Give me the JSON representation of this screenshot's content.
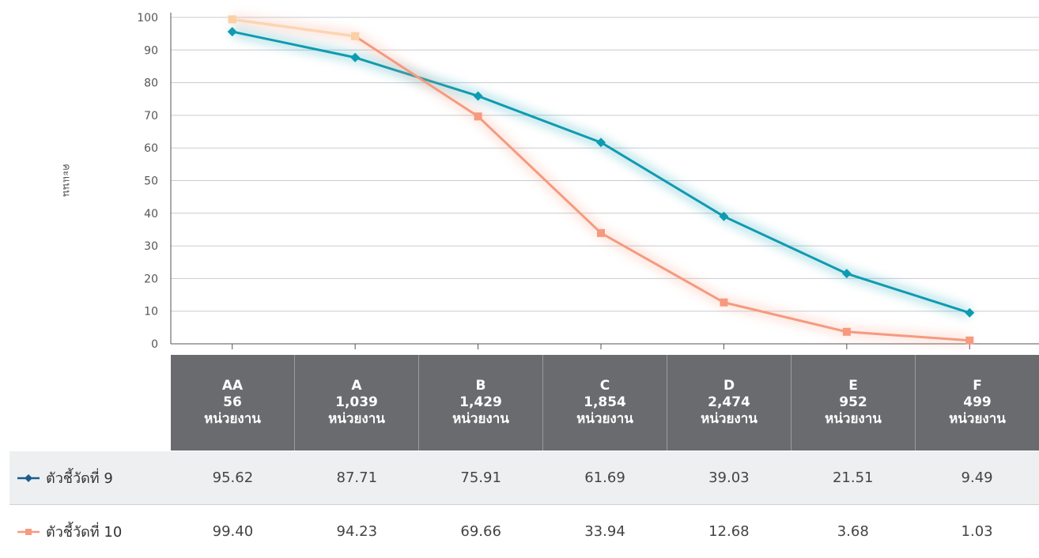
{
  "chart_data": {
    "type": "line",
    "ylabel": "คะแนน",
    "ylim": [
      0,
      100
    ],
    "yticks": [
      "0",
      "10",
      "20",
      "30",
      "40",
      "50",
      "60",
      "70",
      "80",
      "90",
      "100"
    ],
    "categories": [
      "AA",
      "A",
      "B",
      "C",
      "D",
      "E",
      "F"
    ],
    "category_counts": [
      "56",
      "1,039",
      "1,429",
      "1,854",
      "2,474",
      "952",
      "499"
    ],
    "count_unit": "หน่วยงาน",
    "grid": true,
    "series": [
      {
        "name": "ตัวชี้วัดที่ 9",
        "color": "#0e9bb1",
        "marker": "diamond",
        "values": [
          95.62,
          87.71,
          75.91,
          61.69,
          39.03,
          21.51,
          9.49
        ],
        "labels": [
          "95.62",
          "87.71",
          "75.91",
          "61.69",
          "39.03",
          "21.51",
          "9.49"
        ]
      },
      {
        "name": "ตัวชี้วัดที่ 10",
        "color": "#f59a7f",
        "marker": "square",
        "values": [
          99.4,
          94.23,
          69.66,
          33.94,
          12.68,
          3.68,
          1.03
        ],
        "labels": [
          "99.40",
          "94.23",
          "69.66",
          "33.94",
          "12.68",
          "3.68",
          "1.03"
        ]
      }
    ]
  }
}
